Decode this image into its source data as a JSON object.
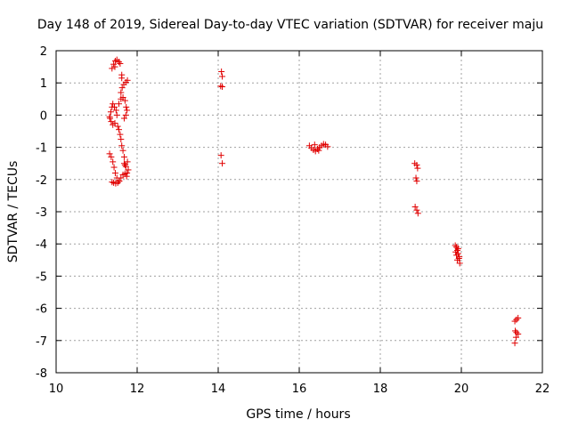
{
  "chart_data": {
    "type": "scatter",
    "title": "Day 148 of 2019, Sidereal Day-to-day VTEC variation (SDTVAR) for receiver maju",
    "xlabel": "GPS time / hours",
    "ylabel": "SDTVAR / TECUs",
    "xlim": [
      10,
      22
    ],
    "ylim": [
      -8,
      2
    ],
    "xticks": [
      10,
      12,
      14,
      16,
      18,
      20,
      22
    ],
    "yticks": [
      -8,
      -7,
      -6,
      -5,
      -4,
      -3,
      -2,
      -1,
      0,
      1,
      2
    ],
    "grid": true,
    "marker": "+",
    "color": "#e00000",
    "series": [
      {
        "name": "SDTVAR",
        "points": [
          [
            11.38,
            -2.08
          ],
          [
            11.42,
            -2.1
          ],
          [
            11.47,
            -2.12
          ],
          [
            11.52,
            -2.1
          ],
          [
            11.56,
            -2.05
          ],
          [
            11.6,
            -1.95
          ],
          [
            11.65,
            -1.85
          ],
          [
            11.7,
            -1.82
          ],
          [
            11.75,
            -1.8
          ],
          [
            11.32,
            -1.2
          ],
          [
            11.36,
            -1.3
          ],
          [
            11.4,
            -1.45
          ],
          [
            11.43,
            -1.62
          ],
          [
            11.46,
            -1.8
          ],
          [
            11.5,
            -1.95
          ],
          [
            11.55,
            -2.05
          ],
          [
            11.68,
            -1.5
          ],
          [
            11.72,
            -1.6
          ],
          [
            11.76,
            -1.45
          ],
          [
            11.78,
            -1.7
          ],
          [
            11.74,
            -1.9
          ],
          [
            11.7,
            -1.55
          ],
          [
            11.62,
            -0.95
          ],
          [
            11.65,
            -1.1
          ],
          [
            11.68,
            -1.3
          ],
          [
            11.6,
            -0.75
          ],
          [
            11.58,
            -0.6
          ],
          [
            11.55,
            -0.45
          ],
          [
            11.52,
            -0.35
          ],
          [
            11.32,
            -0.05
          ],
          [
            11.35,
            0.1
          ],
          [
            11.38,
            0.25
          ],
          [
            11.4,
            0.35
          ],
          [
            11.44,
            0.25
          ],
          [
            11.48,
            0.15
          ],
          [
            11.33,
            -0.1
          ],
          [
            11.36,
            -0.2
          ],
          [
            11.4,
            -0.3
          ],
          [
            11.45,
            -0.25
          ],
          [
            11.5,
            0.0
          ],
          [
            11.55,
            0.35
          ],
          [
            11.6,
            0.5
          ],
          [
            11.65,
            0.55
          ],
          [
            11.7,
            0.45
          ],
          [
            11.73,
            0.25
          ],
          [
            11.75,
            0.15
          ],
          [
            11.72,
            0.0
          ],
          [
            11.68,
            -0.1
          ],
          [
            11.6,
            0.7
          ],
          [
            11.63,
            0.85
          ],
          [
            11.67,
            0.95
          ],
          [
            11.72,
            1.02
          ],
          [
            11.76,
            1.08
          ],
          [
            11.62,
            1.15
          ],
          [
            11.38,
            1.45
          ],
          [
            11.42,
            1.58
          ],
          [
            11.46,
            1.68
          ],
          [
            11.5,
            1.72
          ],
          [
            11.55,
            1.65
          ],
          [
            11.58,
            1.6
          ],
          [
            11.45,
            1.5
          ],
          [
            11.62,
            1.25
          ],
          [
            14.08,
            1.35
          ],
          [
            14.1,
            1.2
          ],
          [
            14.06,
            0.9
          ],
          [
            14.1,
            0.88
          ],
          [
            14.07,
            -1.25
          ],
          [
            14.1,
            -1.5
          ],
          [
            16.25,
            -0.95
          ],
          [
            16.3,
            -1.02
          ],
          [
            16.35,
            -1.08
          ],
          [
            16.4,
            -1.12
          ],
          [
            16.45,
            -1.05
          ],
          [
            16.5,
            -1.0
          ],
          [
            16.55,
            -0.95
          ],
          [
            16.6,
            -0.9
          ],
          [
            16.65,
            -0.92
          ],
          [
            16.7,
            -0.98
          ],
          [
            16.38,
            -0.92
          ],
          [
            16.48,
            -1.1
          ],
          [
            18.85,
            -1.5
          ],
          [
            18.9,
            -1.55
          ],
          [
            18.92,
            -1.65
          ],
          [
            18.88,
            -1.95
          ],
          [
            18.9,
            -2.05
          ],
          [
            18.86,
            -2.85
          ],
          [
            18.9,
            -2.95
          ],
          [
            18.93,
            -3.05
          ],
          [
            19.85,
            -4.05
          ],
          [
            19.88,
            -4.1
          ],
          [
            19.9,
            -4.2
          ],
          [
            19.86,
            -4.25
          ],
          [
            19.92,
            -4.3
          ],
          [
            19.88,
            -4.35
          ],
          [
            19.94,
            -4.45
          ],
          [
            19.9,
            -4.5
          ],
          [
            19.96,
            -4.6
          ],
          [
            19.92,
            -4.15
          ],
          [
            19.95,
            -4.4
          ],
          [
            21.32,
            -6.4
          ],
          [
            21.36,
            -6.35
          ],
          [
            21.4,
            -6.3
          ],
          [
            21.33,
            -6.7
          ],
          [
            21.36,
            -6.75
          ],
          [
            21.4,
            -6.8
          ],
          [
            21.35,
            -6.9
          ],
          [
            21.32,
            -7.08
          ]
        ]
      }
    ]
  }
}
